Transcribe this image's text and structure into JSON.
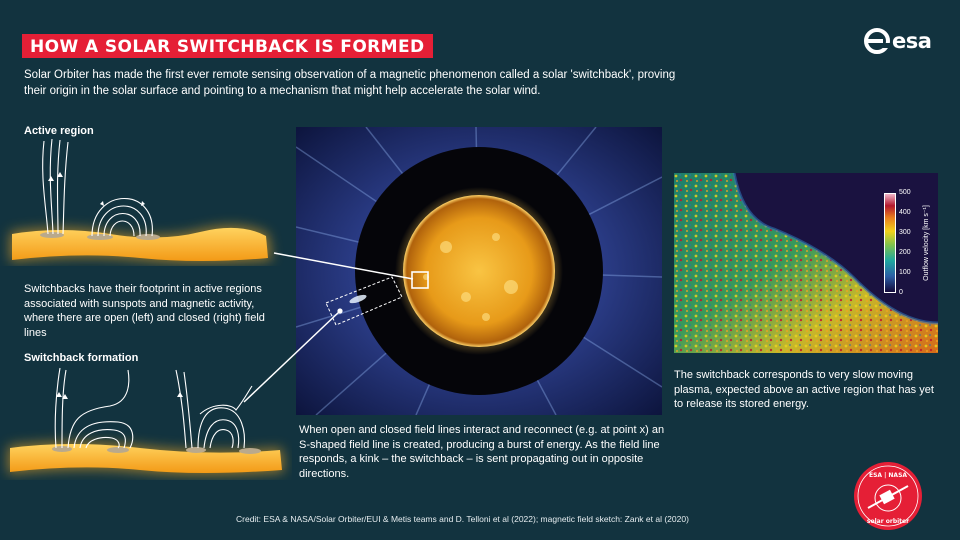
{
  "title": "HOW A SOLAR SWITCHBACK IS FORMED",
  "logo": {
    "text": "esa",
    "icon": "esa-e-icon"
  },
  "intro": "Solar Orbiter has made the first ever remote sensing observation of a magnetic phenomenon called a solar 'switchback', proving their origin in the solar surface and pointing to a mechanism that might help accelerate the solar wind.",
  "active_region": {
    "heading": "Active region",
    "description": "Switchbacks have their footprint in active regions associated with sunspots and magnetic activity, where there are open (left) and closed (right) field lines"
  },
  "formation": {
    "heading": "Switchback formation"
  },
  "center_caption": "When open and closed field lines interact and reconnect (e.g. at point x) an S-shaped field line is created, producing a burst of energy. As the field line responds, a kink – the switchback – is sent propagating out in opposite directions.",
  "right_caption": "The switchback corresponds to very slow moving plasma, expected above an active region that has yet to release its stored energy.",
  "colorbar": {
    "label": "Outflow velocity [km s⁻¹]",
    "ticks": [
      "500",
      "400",
      "300",
      "200",
      "100",
      "0"
    ]
  },
  "credit": "Credit: ESA & NASA/Solar Orbiter/EUI & Metis teams and D. Telloni et al (2022); magnetic field sketch: Zank et al (2020)",
  "badge": {
    "top": "ESA | NASA",
    "bottom": "solar orbiter"
  },
  "colors": {
    "background": "#12333f",
    "accent": "#e51f36",
    "sun": "#f5a623"
  }
}
